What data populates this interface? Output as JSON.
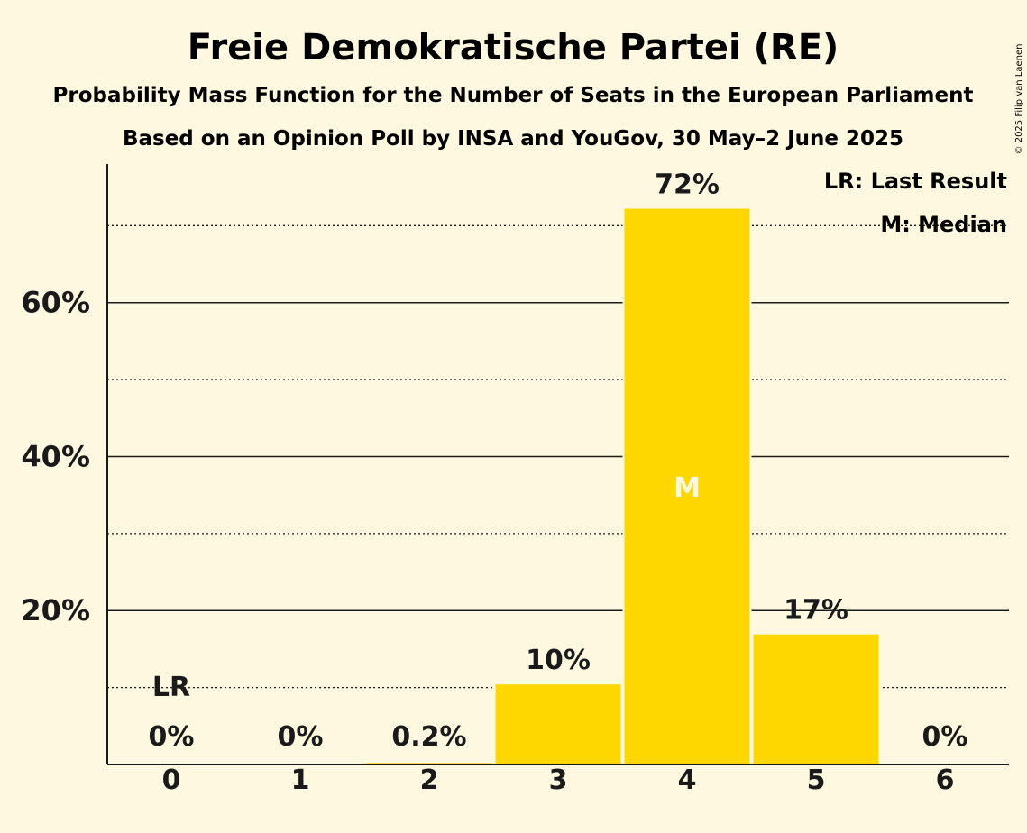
{
  "chart_data": {
    "type": "bar",
    "title": "Freie Demokratische Partei (RE)",
    "subtitle": "Probability Mass Function for the Number of Seats in the European Parliament",
    "subtitle2": "Based on an Opinion Poll by INSA and YouGov, 30 May–2 June 2025",
    "xlabel": "",
    "ylabel": "",
    "categories": [
      "0",
      "1",
      "2",
      "3",
      "4",
      "5",
      "6"
    ],
    "values": [
      0,
      0,
      0.2,
      10.4,
      72.2,
      16.9,
      0
    ],
    "labels": [
      "0%",
      "0%",
      "0.2%",
      "10%",
      "72%",
      "17%",
      "0%"
    ],
    "ylim": [
      0,
      78
    ],
    "yticks": [
      20,
      40,
      60
    ],
    "ytick_labels": [
      "20%",
      "40%",
      "60%"
    ],
    "minor_grid": [
      10,
      30,
      50,
      70
    ],
    "median_index": 4,
    "median_marker": "M",
    "last_result_index": 0,
    "last_result_marker": "LR",
    "legend": [
      "LR: Last Result",
      "M: Median"
    ],
    "copyright": "© 2025 Filip van Laenen",
    "colors": {
      "bar": "#FFD700",
      "background": "#FFF8E1",
      "text": "#1a1a1a",
      "median_text": "#FFF8E1"
    }
  }
}
